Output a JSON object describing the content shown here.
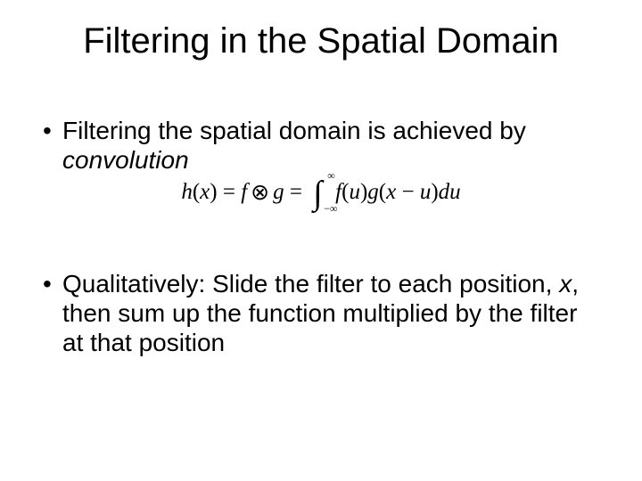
{
  "title": "Filtering in the Spatial Domain",
  "bullets": {
    "b1_part1": "Filtering the spatial domain is achieved by ",
    "b1_italic": "convolution",
    "b2_part1": "Qualitatively: Slide the filter to each position, ",
    "b2_italic": "x",
    "b2_part2": ", then sum up the function multiplied by the filter at that position"
  },
  "formula": {
    "h": "h",
    "lp1": "(",
    "x1": "x",
    "rp1": ")",
    "eq1": " = ",
    "f1": "f",
    "otimes": "⊗",
    "g1": "g",
    "eq2": " = ",
    "int_sym": "∫",
    "int_upper": "∞",
    "int_lower": "−∞",
    "f2": "f",
    "lp2": "(",
    "u1": "u",
    "rp2": ")",
    "g2": "g",
    "lp3": "(",
    "x2": "x",
    "minus": " − ",
    "u2": "u",
    "rp3": ")",
    "du_d": "d",
    "du_u": "u"
  },
  "style": {
    "background": "#ffffff",
    "text_color": "#000000",
    "title_fontsize": 40,
    "body_fontsize": 28,
    "formula_fontsize": 25,
    "font_family_body": "Arial",
    "font_family_formula": "Times New Roman"
  }
}
